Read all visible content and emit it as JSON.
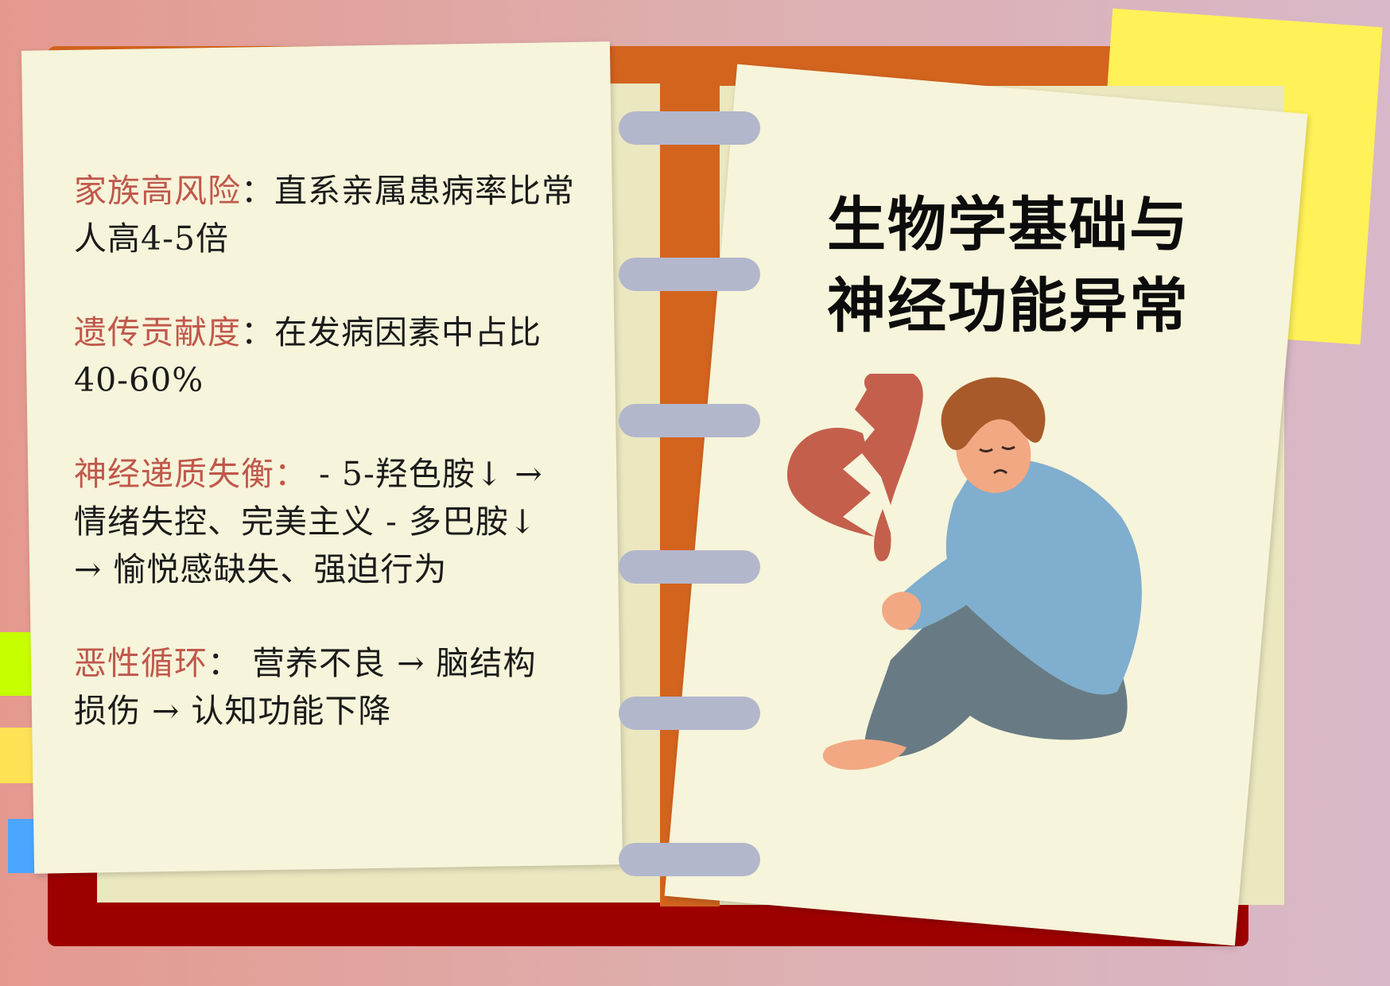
{
  "left_page": {
    "items": [
      {
        "label": "家族高风险",
        "separator": "：",
        "text_line1": "直系亲属患病率比常",
        "text_line2": "人高4-5倍"
      },
      {
        "label": "遗传贡献度",
        "separator": "：",
        "text_line1": "在发病因素中占比",
        "text_line2": "40-60%"
      },
      {
        "label": "神经递质失衡：",
        "text_line1": " - 5-羟色胺↓ →",
        "text_line2": "情绪失控、完美主义 - 多巴胺↓",
        "text_line3": "→ 愉悦感缺失、强迫行为"
      },
      {
        "label": "恶性循环",
        "separator": "：",
        "text_line1": " 营养不良 → 脑结构",
        "text_line2": "损伤 → 认知功能下降"
      }
    ]
  },
  "right_page": {
    "title_line1": "生物学基础与",
    "title_line2": "神经功能异常",
    "illustration": "sad-person-broken-heart"
  },
  "colors": {
    "background": "#e4998e",
    "cover_orange": "#d3641e",
    "cover_red": "#9e0000",
    "paper": "#f6f4da",
    "highlight": "#c0584b",
    "ring": "#b3b7cc",
    "sticky_yellow": "#fff157",
    "sticky_green": "#c6ff00",
    "sticky_blue": "#4ba6ff"
  }
}
